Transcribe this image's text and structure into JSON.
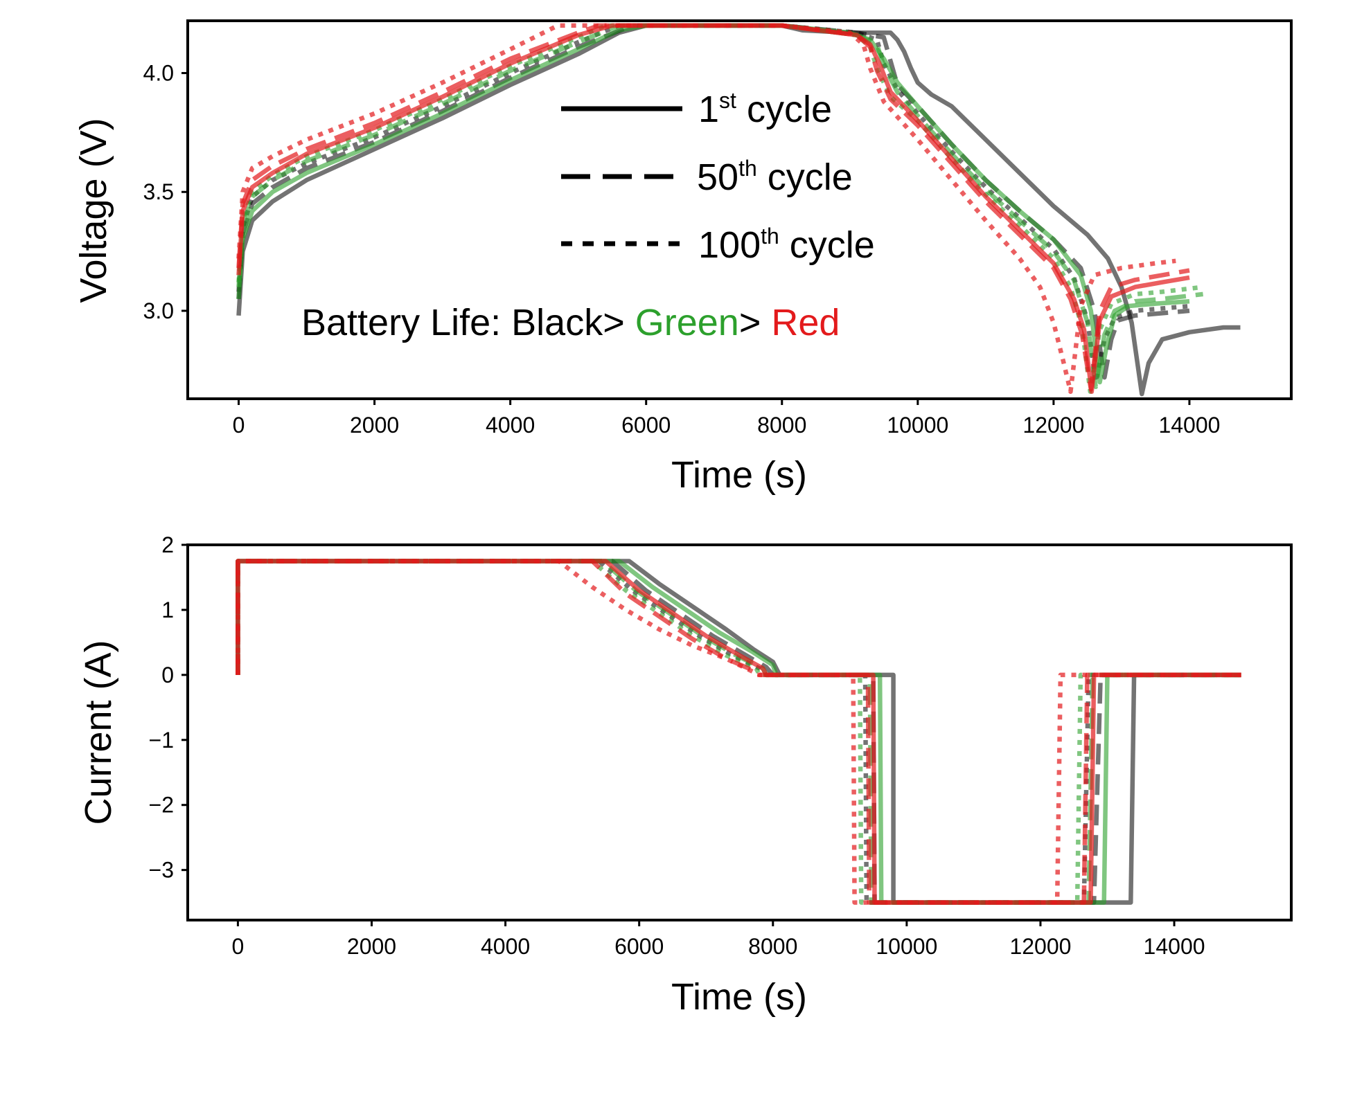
{
  "chart_data": [
    {
      "id": "voltage",
      "type": "line",
      "title": "",
      "xlabel": "Time (s)",
      "ylabel": "Voltage (V)",
      "xlim": [
        -750,
        15500
      ],
      "ylim": [
        2.63,
        4.22
      ],
      "xticks": [
        0,
        2000,
        4000,
        6000,
        8000,
        10000,
        12000,
        14000
      ],
      "xtick_labels": [
        "0",
        "2000",
        "4000",
        "6000",
        "8000",
        "10000",
        "12000",
        "14000"
      ],
      "yticks": [
        3.0,
        3.5,
        4.0
      ],
      "ytick_labels": [
        "3.0",
        "3.5",
        "4.0"
      ],
      "grid": false,
      "legend": {
        "placement": "center",
        "entries": [
          {
            "style": "solid",
            "base": "1",
            "sup": "st",
            "rest": " cycle"
          },
          {
            "style": "dashed",
            "base": "50",
            "sup": "th",
            "rest": " cycle"
          },
          {
            "style": "dotted",
            "base": "100",
            "sup": "th",
            "rest": " cycle"
          }
        ]
      },
      "annotation": {
        "prefix": "Battery Life:  Black> ",
        "green": "Green",
        "middle": "> ",
        "red": "Red"
      },
      "series": [
        {
          "name": "Black 1st cycle",
          "color": "#000000",
          "style": "solid",
          "x": [
            0,
            60,
            200,
            500,
            1000,
            2000,
            3000,
            4000,
            5000,
            5600,
            6000,
            8000,
            8300,
            9000,
            9600,
            9700,
            9800,
            9900,
            10000,
            10200,
            10500,
            11000,
            11500,
            12000,
            12500,
            12800,
            13000,
            13150,
            13300,
            13400,
            13600,
            14000,
            14500,
            14750
          ],
          "y": [
            2.98,
            3.25,
            3.38,
            3.46,
            3.55,
            3.68,
            3.81,
            3.95,
            4.08,
            4.17,
            4.2,
            4.2,
            4.18,
            4.17,
            4.17,
            4.14,
            4.09,
            4.02,
            3.96,
            3.91,
            3.86,
            3.72,
            3.58,
            3.44,
            3.32,
            3.22,
            3.1,
            2.95,
            2.65,
            2.78,
            2.88,
            2.91,
            2.93,
            2.93
          ]
        },
        {
          "name": "Black 50th cycle",
          "color": "#000000",
          "style": "dashed",
          "x": [
            0,
            60,
            200,
            500,
            1000,
            2000,
            3000,
            4000,
            5000,
            5800,
            8000,
            9100,
            9500,
            9600,
            9700,
            10000,
            10500,
            11000,
            11500,
            12000,
            12400,
            12600,
            12750,
            12850,
            12950,
            13200,
            13600,
            14000
          ],
          "y": [
            3.05,
            3.32,
            3.45,
            3.52,
            3.6,
            3.71,
            3.84,
            3.98,
            4.11,
            4.2,
            4.2,
            4.17,
            4.15,
            4.05,
            3.95,
            3.86,
            3.7,
            3.55,
            3.42,
            3.3,
            3.18,
            3.0,
            2.72,
            2.88,
            2.96,
            2.98,
            2.99,
            3.0
          ]
        },
        {
          "name": "Black 100th cycle",
          "color": "#000000",
          "style": "dotted",
          "x": [
            0,
            60,
            200,
            500,
            1000,
            2000,
            3000,
            4000,
            5000,
            5600,
            8000,
            9100,
            9400,
            9500,
            9700,
            10000,
            10500,
            11000,
            11500,
            12000,
            12300,
            12500,
            12620,
            12750,
            12900,
            13200,
            13600,
            14000
          ],
          "y": [
            3.08,
            3.35,
            3.48,
            3.55,
            3.62,
            3.73,
            3.86,
            4.0,
            4.13,
            4.2,
            4.2,
            4.17,
            4.14,
            4.04,
            3.93,
            3.83,
            3.67,
            3.52,
            3.39,
            3.26,
            3.14,
            2.96,
            2.7,
            2.88,
            2.97,
            3.0,
            3.01,
            3.02
          ]
        },
        {
          "name": "Green 1st cycle",
          "color": "#2ca02c",
          "style": "solid",
          "x": [
            0,
            60,
            200,
            500,
            1000,
            2000,
            3000,
            4000,
            5000,
            5600,
            6000,
            8000,
            9000,
            9300,
            9500,
            9700,
            10000,
            10500,
            11000,
            11500,
            12000,
            12400,
            12550,
            12680,
            12780,
            12900,
            13100,
            13500,
            14000
          ],
          "y": [
            3.05,
            3.3,
            3.42,
            3.5,
            3.58,
            3.7,
            3.83,
            3.97,
            4.1,
            4.18,
            4.2,
            4.2,
            4.17,
            4.14,
            4.06,
            3.96,
            3.86,
            3.7,
            3.55,
            3.42,
            3.3,
            3.15,
            3.0,
            2.7,
            2.85,
            2.98,
            3.02,
            3.03,
            3.04
          ]
        },
        {
          "name": "Green 50th cycle",
          "color": "#2ca02c",
          "style": "dashed",
          "x": [
            0,
            60,
            200,
            500,
            1000,
            2000,
            3000,
            4000,
            5000,
            5600,
            8000,
            9100,
            9400,
            9500,
            9700,
            10000,
            10500,
            11000,
            11500,
            12000,
            12300,
            12500,
            12620,
            12750,
            12900,
            13200,
            13600,
            14200
          ],
          "y": [
            3.1,
            3.36,
            3.48,
            3.55,
            3.63,
            3.74,
            3.87,
            4.01,
            4.13,
            4.2,
            4.2,
            4.16,
            4.12,
            4.03,
            3.92,
            3.82,
            3.66,
            3.51,
            3.38,
            3.25,
            3.13,
            2.95,
            2.68,
            2.9,
            3.0,
            3.04,
            3.05,
            3.07
          ]
        },
        {
          "name": "Green 100th cycle",
          "color": "#2ca02c",
          "style": "dotted",
          "x": [
            0,
            60,
            200,
            500,
            1000,
            2000,
            3000,
            4000,
            5000,
            5400,
            8000,
            9100,
            9300,
            9400,
            9600,
            10000,
            10500,
            11000,
            11500,
            12000,
            12250,
            12420,
            12540,
            12680,
            12850,
            13200,
            13600,
            14200
          ],
          "y": [
            3.12,
            3.38,
            3.5,
            3.57,
            3.65,
            3.76,
            3.89,
            4.03,
            4.15,
            4.2,
            4.2,
            4.16,
            4.11,
            4.02,
            3.9,
            3.8,
            3.64,
            3.49,
            3.36,
            3.22,
            3.1,
            2.93,
            2.66,
            2.92,
            3.03,
            3.07,
            3.08,
            3.1
          ]
        },
        {
          "name": "Red 1st cycle",
          "color": "#e31a1c",
          "style": "solid",
          "x": [
            0,
            60,
            200,
            500,
            1000,
            2000,
            3000,
            4000,
            5000,
            5500,
            8000,
            9100,
            9300,
            9450,
            9600,
            10000,
            10500,
            11000,
            11500,
            12000,
            12300,
            12450,
            12560,
            12680,
            12850,
            13200,
            13600,
            14000
          ],
          "y": [
            3.15,
            3.42,
            3.52,
            3.58,
            3.66,
            3.77,
            3.9,
            4.04,
            4.16,
            4.2,
            4.2,
            4.16,
            4.12,
            4.03,
            3.92,
            3.8,
            3.64,
            3.48,
            3.34,
            3.2,
            3.05,
            2.92,
            2.66,
            2.96,
            3.06,
            3.1,
            3.12,
            3.14
          ]
        },
        {
          "name": "Red 50th cycle",
          "color": "#e31a1c",
          "style": "dashed",
          "x": [
            0,
            60,
            200,
            500,
            1000,
            2000,
            3000,
            4000,
            5000,
            5300,
            8000,
            9100,
            9300,
            9400,
            9600,
            10000,
            10500,
            11000,
            11500,
            12000,
            12250,
            12420,
            12550,
            12680,
            12850,
            13200,
            13600,
            14000
          ],
          "y": [
            3.18,
            3.45,
            3.55,
            3.61,
            3.68,
            3.79,
            3.92,
            4.06,
            4.17,
            4.2,
            4.2,
            4.16,
            4.11,
            4.01,
            3.89,
            3.78,
            3.62,
            3.46,
            3.32,
            3.18,
            3.05,
            2.9,
            2.67,
            3.0,
            3.1,
            3.13,
            3.15,
            3.17
          ]
        },
        {
          "name": "Red 100th cycle",
          "color": "#e31a1c",
          "style": "dotted",
          "x": [
            0,
            60,
            200,
            500,
            1000,
            2000,
            3000,
            4000,
            4700,
            8000,
            9000,
            9200,
            9300,
            9500,
            10000,
            10500,
            11000,
            11500,
            11800,
            12000,
            12150,
            12250,
            12400,
            12600,
            13000,
            13500,
            13800
          ],
          "y": [
            3.22,
            3.5,
            3.6,
            3.65,
            3.72,
            3.83,
            3.96,
            4.1,
            4.2,
            4.2,
            4.17,
            4.12,
            4.02,
            3.88,
            3.72,
            3.55,
            3.38,
            3.22,
            3.1,
            2.95,
            2.78,
            2.66,
            3.02,
            3.15,
            3.18,
            3.2,
            3.21
          ]
        }
      ]
    },
    {
      "id": "current",
      "type": "line",
      "title": "",
      "xlabel": "Time (s)",
      "ylabel": "Current (A)",
      "xlim": [
        -750,
        15750
      ],
      "ylim": [
        -3.77,
        2.0
      ],
      "xticks": [
        0,
        2000,
        4000,
        6000,
        8000,
        10000,
        12000,
        14000
      ],
      "xtick_labels": [
        "0",
        "2000",
        "4000",
        "6000",
        "8000",
        "10000",
        "12000",
        "14000"
      ],
      "yticks": [
        2,
        1,
        0,
        -1,
        -2,
        -3
      ],
      "ytick_labels": [
        "2",
        "1",
        "0",
        "−1",
        "−2",
        "−3"
      ],
      "grid": false,
      "series": [
        {
          "name": "Black 1st cycle",
          "color": "#000000",
          "style": "solid",
          "x": [
            0,
            0,
            30,
            5850,
            6300,
            6800,
            7300,
            7700,
            8000,
            8100,
            9800,
            9800,
            9830,
            13250,
            13350,
            13400,
            15000
          ],
          "y": [
            0,
            1.75,
            1.75,
            1.75,
            1.4,
            1.05,
            0.7,
            0.4,
            0.2,
            0,
            0,
            -3.5,
            -3.5,
            -3.5,
            -3.5,
            0,
            0
          ]
        },
        {
          "name": "Black 50th cycle",
          "color": "#000000",
          "style": "dashed",
          "x": [
            0,
            0,
            30,
            5600,
            6100,
            6600,
            7100,
            7600,
            7900,
            8000,
            9500,
            9520,
            12800,
            12900,
            15000
          ],
          "y": [
            0,
            1.75,
            1.75,
            1.75,
            1.3,
            0.95,
            0.6,
            0.3,
            0.12,
            0,
            0,
            -3.5,
            -3.5,
            0,
            0
          ]
        },
        {
          "name": "Black 100th cycle",
          "color": "#000000",
          "style": "dotted",
          "x": [
            0,
            0,
            30,
            5400,
            5900,
            6400,
            6900,
            7400,
            7800,
            7900,
            9380,
            9400,
            12650,
            12720,
            15000
          ],
          "y": [
            0,
            1.75,
            1.75,
            1.75,
            1.3,
            0.95,
            0.6,
            0.3,
            0.1,
            0,
            0,
            -3.5,
            -3.5,
            0,
            0
          ]
        },
        {
          "name": "Green 1st cycle",
          "color": "#2ca02c",
          "style": "solid",
          "x": [
            0,
            0,
            30,
            5700,
            6200,
            6700,
            7200,
            7700,
            8000,
            8050,
            9600,
            9620,
            12950,
            13000,
            15000
          ],
          "y": [
            0,
            1.75,
            1.75,
            1.75,
            1.35,
            1.0,
            0.65,
            0.35,
            0.15,
            0,
            0,
            -3.5,
            -3.5,
            0,
            0
          ]
        },
        {
          "name": "Green 50th cycle",
          "color": "#2ca02c",
          "style": "dashed",
          "x": [
            0,
            0,
            30,
            5450,
            5950,
            6450,
            6950,
            7450,
            7850,
            7900,
            9450,
            9470,
            12720,
            12780,
            15000
          ],
          "y": [
            0,
            1.75,
            1.75,
            1.75,
            1.3,
            0.95,
            0.6,
            0.3,
            0.1,
            0,
            0,
            -3.5,
            -3.5,
            0,
            0
          ]
        },
        {
          "name": "Green 100th cycle",
          "color": "#2ca02c",
          "style": "dotted",
          "x": [
            0,
            0,
            30,
            5300,
            5800,
            6300,
            6800,
            7300,
            7750,
            7800,
            9300,
            9320,
            12550,
            12600,
            15000
          ],
          "y": [
            0,
            1.75,
            1.75,
            1.75,
            1.3,
            0.95,
            0.6,
            0.3,
            0.1,
            0,
            0,
            -3.5,
            -3.5,
            0,
            0
          ]
        },
        {
          "name": "Red 1st cycle",
          "color": "#e31a1c",
          "style": "solid",
          "x": [
            0,
            0,
            30,
            5500,
            6000,
            6500,
            7000,
            7500,
            7850,
            7900,
            9500,
            9520,
            12750,
            12800,
            15000
          ],
          "y": [
            0,
            1.75,
            1.75,
            1.75,
            1.3,
            0.95,
            0.6,
            0.3,
            0.1,
            0,
            0,
            -3.5,
            -3.5,
            0,
            0
          ]
        },
        {
          "name": "Red 50th cycle",
          "color": "#e31a1c",
          "style": "dashed",
          "x": [
            0,
            0,
            30,
            5300,
            5800,
            6300,
            6800,
            7300,
            7750,
            7800,
            9420,
            9440,
            12650,
            12700,
            15000
          ],
          "y": [
            0,
            1.75,
            1.75,
            1.75,
            1.25,
            0.9,
            0.55,
            0.25,
            0.05,
            0,
            0,
            -3.5,
            -3.5,
            0,
            0
          ]
        },
        {
          "name": "Red 100th cycle",
          "color": "#e31a1c",
          "style": "dotted",
          "x": [
            0,
            0,
            30,
            4800,
            5300,
            5800,
            6300,
            6800,
            7300,
            7700,
            7750,
            9200,
            9220,
            12250,
            12300,
            15000
          ],
          "y": [
            0,
            1.75,
            1.75,
            1.75,
            1.35,
            1.0,
            0.7,
            0.45,
            0.25,
            0.05,
            0,
            0,
            -3.5,
            -3.5,
            0,
            0
          ]
        }
      ]
    }
  ]
}
